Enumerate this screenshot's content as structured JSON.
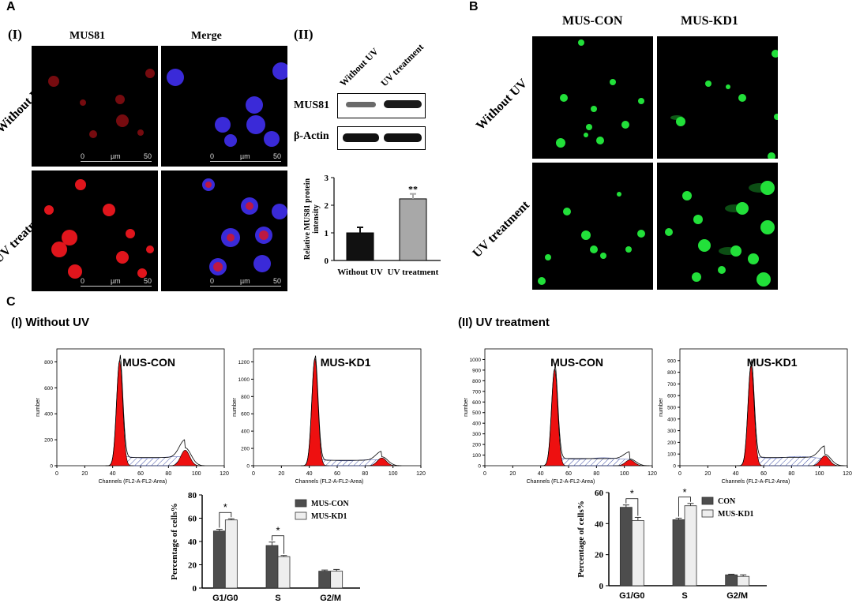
{
  "panelA": {
    "label": "A",
    "sub_i": "(I)",
    "sub_ii": "(II)",
    "col_mus81": "MUS81",
    "col_merge": "Merge",
    "row_without": "Without UV",
    "row_uv": "UV treatment",
    "scale": {
      "zero": "0",
      "unit": "µm",
      "fifty": "50"
    },
    "blot_lanes": [
      "Without UV",
      "UV treatment"
    ],
    "blot_rows": [
      "MUS81",
      "β-Actin"
    ],
    "colors": {
      "red": "#d8141c",
      "blue": "#3a2ad8"
    }
  },
  "panelB": {
    "label": "B",
    "cols": [
      "MUS-CON",
      "MUS-KD1"
    ],
    "rows": [
      "Without UV",
      "UV treatment"
    ],
    "color": "#22e03a"
  },
  "panelC": {
    "label": "C",
    "left_title": "(I)  Without UV",
    "right_title": "(II)  UV treatment",
    "hist_titles": [
      "MUS-CON",
      "MUS-KD1",
      "MUS-CON",
      "MUS-KD1"
    ],
    "hist_xlabel": "Channels (FL2-A-FL2-Area)",
    "hist_ylabel": "number"
  },
  "chart_data": [
    {
      "type": "bar",
      "panel": "A(II)",
      "categories": [
        "Without UV",
        "UV treatment"
      ],
      "values": [
        1.0,
        2.23
      ],
      "errors": [
        0.2,
        0.18
      ],
      "colors": [
        "#111111",
        "#a8a8a8"
      ],
      "ylabel": "Relative MUS81 protein intensity",
      "ylim": [
        0,
        3
      ],
      "yticks": [
        0,
        1,
        2,
        3
      ],
      "annotation": "**"
    },
    {
      "type": "area",
      "panel": "C(I) MUS-CON",
      "xlim": [
        0,
        120
      ],
      "xticks": [
        0,
        20,
        40,
        60,
        80,
        100,
        120
      ],
      "ylim": [
        0,
        900
      ],
      "yticks": [
        0,
        200,
        400,
        600,
        800
      ],
      "peaks": {
        "g1_x": 45,
        "g1_y": 810,
        "g2_x": 92,
        "g2_y": 120,
        "s_level": 70
      }
    },
    {
      "type": "area",
      "panel": "C(I) MUS-KD1",
      "xlim": [
        0,
        120
      ],
      "xticks": [
        0,
        20,
        40,
        60,
        80,
        100,
        120
      ],
      "ylim": [
        0,
        1350
      ],
      "yticks": [
        0,
        200,
        400,
        600,
        800,
        1000,
        1200
      ],
      "peaks": {
        "g1_x": 44,
        "g1_y": 1240,
        "g2_x": 92,
        "g2_y": 90,
        "s_level": 70
      }
    },
    {
      "type": "area",
      "panel": "C(II) MUS-CON",
      "xlim": [
        0,
        120
      ],
      "xticks": [
        0,
        20,
        40,
        60,
        80,
        100,
        120
      ],
      "ylim": [
        0,
        1100
      ],
      "yticks": [
        0,
        100,
        200,
        300,
        400,
        500,
        600,
        700,
        800,
        900,
        1000
      ],
      "peaks": {
        "g1_x": 50,
        "g1_y": 910,
        "g2_x": 104,
        "g2_y": 55,
        "s_level": 75
      }
    },
    {
      "type": "area",
      "panel": "C(II) MUS-KD1",
      "xlim": [
        0,
        120
      ],
      "xticks": [
        0,
        20,
        40,
        60,
        80,
        100,
        120
      ],
      "ylim": [
        0,
        1000
      ],
      "yticks": [
        0,
        100,
        200,
        300,
        400,
        500,
        600,
        700,
        800,
        900
      ],
      "peaks": {
        "g1_x": 51,
        "g1_y": 860,
        "g2_x": 104,
        "g2_y": 85,
        "s_level": 80
      }
    },
    {
      "type": "bar",
      "panel": "C(I) bar",
      "categories": [
        "G1/G0",
        "S",
        "G2/M"
      ],
      "series": [
        {
          "name": "MUS-CON",
          "values": [
            49,
            36.5,
            14.5
          ],
          "errors": [
            1.5,
            3,
            1
          ],
          "color": "#4d4d4d"
        },
        {
          "name": "MUS-KD1",
          "values": [
            58.5,
            27,
            14.5
          ],
          "errors": [
            1,
            1,
            1.5
          ],
          "color": "#eeeeee"
        }
      ],
      "ylabel": "Percentage of cells%",
      "ylim": [
        0,
        80
      ],
      "yticks": [
        0,
        20,
        40,
        60,
        80
      ],
      "significance": [
        "*",
        "*"
      ]
    },
    {
      "type": "bar",
      "panel": "C(II) bar",
      "categories": [
        "G1/G0",
        "S",
        "G2/M"
      ],
      "series": [
        {
          "name": "CON",
          "values": [
            50.5,
            42.5,
            7
          ],
          "errors": [
            1.5,
            1,
            0.4
          ],
          "color": "#4d4d4d"
        },
        {
          "name": "MUS-KD1",
          "values": [
            42,
            51.5,
            6
          ],
          "errors": [
            2,
            1.5,
            1
          ],
          "color": "#eeeeee"
        }
      ],
      "ylabel": "Percentage of cells%",
      "ylim": [
        0,
        60
      ],
      "yticks": [
        0,
        20,
        40,
        60
      ],
      "significance": [
        "*",
        "*"
      ]
    }
  ]
}
